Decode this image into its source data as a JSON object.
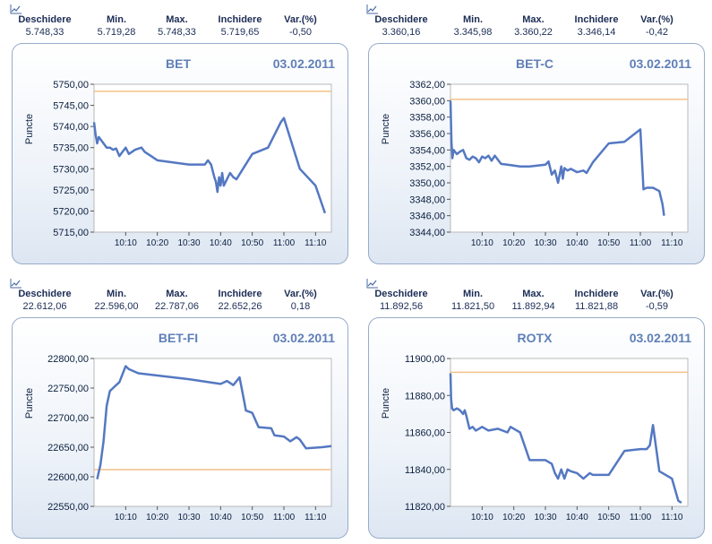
{
  "headers": {
    "open": "Deschidere",
    "min": "Min.",
    "max": "Max.",
    "close": "Inchidere",
    "change": "Var.(%)"
  },
  "y_axis_label": "Puncte",
  "colors": {
    "line": "#5478c2",
    "reference": "#f3c189",
    "frame": "#97acc8",
    "title": "#5f7fb8"
  },
  "chart_data": [
    {
      "type": "line",
      "title": "BET",
      "date": "03.02.2011",
      "ylabel": "Puncte",
      "stats": {
        "open": "5.748,33",
        "min": "5.719,28",
        "max": "5.748,33",
        "close": "5.719,65",
        "change": "-0,50"
      },
      "ylim": [
        5715,
        5750
      ],
      "yticks": [
        5715,
        5720,
        5725,
        5730,
        5735,
        5740,
        5745,
        5750
      ],
      "ytick_labels": [
        "5715,00",
        "5720,00",
        "5725,00",
        "5730,00",
        "5735,00",
        "5740,00",
        "5745,00",
        "5750,00"
      ],
      "xlim": [
        0,
        75
      ],
      "xticks": [
        10,
        20,
        30,
        40,
        50,
        60,
        70
      ],
      "xtick_labels": [
        "10:10",
        "10:20",
        "10:30",
        "10:40",
        "10:50",
        "11:00",
        "11:10"
      ],
      "reference": 5748.33,
      "x": [
        0,
        0.5,
        1,
        1.5,
        2,
        4,
        5,
        6,
        7,
        8,
        9,
        10,
        11,
        13,
        15,
        16,
        18,
        20,
        25,
        30,
        35,
        36,
        37,
        38,
        38.5,
        39,
        39.5,
        40,
        40.5,
        41,
        43,
        44,
        45,
        50,
        55,
        59,
        60,
        65,
        70,
        73
      ],
      "y": [
        5741,
        5738,
        5736,
        5737.5,
        5737,
        5735,
        5735,
        5734.5,
        5734.8,
        5733,
        5734,
        5735,
        5733.5,
        5734.5,
        5735,
        5734,
        5733,
        5732,
        5731.5,
        5731,
        5731,
        5732,
        5731,
        5728,
        5727,
        5724.5,
        5728,
        5726,
        5729,
        5726,
        5729,
        5728,
        5727.5,
        5733.5,
        5735,
        5741,
        5742,
        5730,
        5726,
        5719.5
      ]
    },
    {
      "type": "line",
      "title": "BET-C",
      "date": "03.02.2011",
      "ylabel": "Puncte",
      "stats": {
        "open": "3.360,16",
        "min": "3.345,98",
        "max": "3.360,22",
        "close": "3.346,14",
        "change": "-0,42"
      },
      "ylim": [
        3344,
        3362
      ],
      "yticks": [
        3344,
        3346,
        3348,
        3350,
        3352,
        3354,
        3356,
        3358,
        3360,
        3362
      ],
      "ytick_labels": [
        "3344,00",
        "3346,00",
        "3348,00",
        "3350,00",
        "3352,00",
        "3354,00",
        "3356,00",
        "3358,00",
        "3360,00",
        "3362,00"
      ],
      "xlim": [
        0,
        75
      ],
      "xticks": [
        10,
        20,
        30,
        40,
        50,
        60,
        70
      ],
      "xtick_labels": [
        "10:10",
        "10:20",
        "10:30",
        "10:40",
        "10:50",
        "11:00",
        "11:10"
      ],
      "reference": 3360.16,
      "x": [
        0,
        0.3,
        0.6,
        1,
        2,
        3,
        4,
        5,
        6,
        7,
        8,
        9,
        10,
        11,
        12,
        13,
        14,
        16,
        18,
        20,
        22,
        25,
        30,
        31,
        32,
        33,
        34,
        35,
        35.5,
        36,
        37,
        38,
        40,
        42,
        43,
        45,
        50,
        55,
        60,
        61,
        62,
        64,
        66,
        67,
        67.5
      ],
      "y": [
        3360,
        3355,
        3353,
        3354,
        3353.5,
        3353.8,
        3354,
        3353,
        3352.8,
        3353.2,
        3353,
        3352.5,
        3353.2,
        3353,
        3353.3,
        3352.7,
        3353.3,
        3352.3,
        3352.2,
        3352.1,
        3352,
        3352,
        3352.2,
        3352.6,
        3351,
        3351.5,
        3350,
        3352,
        3350.5,
        3351.8,
        3351.5,
        3351.7,
        3351.3,
        3351.5,
        3351.2,
        3352.5,
        3354.8,
        3355,
        3356.5,
        3349.2,
        3349.4,
        3349.4,
        3349,
        3347.4,
        3346
      ]
    },
    {
      "type": "line",
      "title": "BET-FI",
      "date": "03.02.2011",
      "ylabel": "Puncte",
      "stats": {
        "open": "22.612,06",
        "min": "22.596,00",
        "max": "22.787,06",
        "close": "22.652,26",
        "change": "0,18"
      },
      "ylim": [
        22550,
        22800
      ],
      "yticks": [
        22550,
        22600,
        22650,
        22700,
        22750,
        22800
      ],
      "ytick_labels": [
        "22550,00",
        "22600,00",
        "22650,00",
        "22700,00",
        "22750,00",
        "22800,00"
      ],
      "xlim": [
        0,
        75
      ],
      "xticks": [
        10,
        20,
        30,
        40,
        50,
        60,
        70
      ],
      "xtick_labels": [
        "10:10",
        "10:20",
        "10:30",
        "10:40",
        "10:50",
        "11:00",
        "11:10"
      ],
      "reference": 22612.06,
      "x": [
        1,
        2,
        3,
        4,
        5,
        6,
        8,
        10,
        11,
        14,
        30,
        40,
        42,
        44,
        46,
        47,
        48,
        50,
        52,
        56,
        57,
        60,
        62,
        64,
        65,
        67,
        72,
        75
      ],
      "y": [
        22596,
        22620,
        22660,
        22720,
        22745,
        22750,
        22760,
        22787,
        22782,
        22775,
        22765,
        22757,
        22762,
        22755,
        22768,
        22740,
        22712,
        22708,
        22684,
        22682,
        22670,
        22668,
        22660,
        22667,
        22663,
        22648,
        22650,
        22652
      ]
    },
    {
      "type": "line",
      "title": "ROTX",
      "date": "03.02.2011",
      "ylabel": "Puncte",
      "stats": {
        "open": "11.892,56",
        "min": "11.821,50",
        "max": "11.892,94",
        "close": "11.821,88",
        "change": "-0,59"
      },
      "ylim": [
        11820,
        11900
      ],
      "yticks": [
        11820,
        11840,
        11860,
        11880,
        11900
      ],
      "ytick_labels": [
        "11820,00",
        "11840,00",
        "11860,00",
        "11880,00",
        "11900,00"
      ],
      "xlim": [
        0,
        75
      ],
      "xticks": [
        10,
        20,
        30,
        40,
        50,
        60,
        70
      ],
      "xtick_labels": [
        "10:10",
        "10:20",
        "10:30",
        "10:40",
        "10:50",
        "11:00",
        "11:10"
      ],
      "reference": 11892.56,
      "x": [
        0,
        0.2,
        0.5,
        1,
        2,
        3,
        4,
        4.5,
        5,
        6,
        7,
        8,
        9,
        10,
        12,
        15,
        18,
        19,
        20,
        22,
        25,
        30,
        32,
        33,
        34,
        35,
        36,
        37,
        38,
        40,
        42,
        44,
        45,
        50,
        55,
        60,
        62,
        63,
        64,
        66,
        70,
        72,
        73
      ],
      "y": [
        11892,
        11878,
        11873,
        11872,
        11873,
        11872,
        11870,
        11872,
        11869,
        11862,
        11863,
        11861,
        11862,
        11863,
        11861,
        11862,
        11860,
        11863,
        11862,
        11860,
        11845,
        11845,
        11843,
        11838,
        11835,
        11840,
        11835,
        11840,
        11839,
        11838,
        11835,
        11838,
        11837,
        11837,
        11850,
        11851,
        11851,
        11853,
        11864,
        11839,
        11835,
        11823,
        11822
      ]
    }
  ]
}
